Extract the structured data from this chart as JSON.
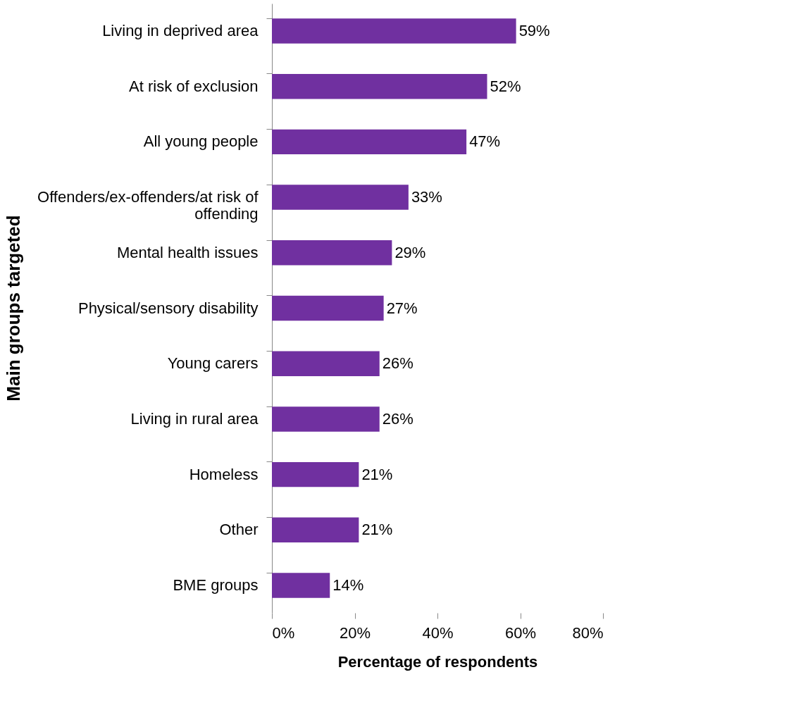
{
  "chart_data": {
    "type": "bar",
    "orientation": "horizontal",
    "ylabel": "Main groups targeted",
    "xlabel": "Percentage of respondents",
    "categories": [
      "Living in deprived area",
      "At risk of exclusion",
      "All young people",
      "Offenders/ex-offenders/at risk of offending",
      "Mental health issues",
      "Physical/sensory disability",
      "Young carers",
      "Living in rural area",
      "Homeless",
      "Other",
      "BME groups"
    ],
    "values": [
      59,
      52,
      47,
      33,
      29,
      27,
      26,
      26,
      21,
      21,
      14
    ],
    "value_labels": [
      "59%",
      "52%",
      "47%",
      "33%",
      "29%",
      "27%",
      "26%",
      "26%",
      "21%",
      "21%",
      "14%"
    ],
    "color": "#7030a0",
    "xlim": [
      0,
      80
    ],
    "xticks": [
      {
        "value": 0,
        "label": "0%"
      },
      {
        "value": 20,
        "label": "20%"
      },
      {
        "value": 40,
        "label": "40%"
      },
      {
        "value": 60,
        "label": "60%"
      },
      {
        "value": 80,
        "label": "80%"
      }
    ],
    "grid": false
  }
}
